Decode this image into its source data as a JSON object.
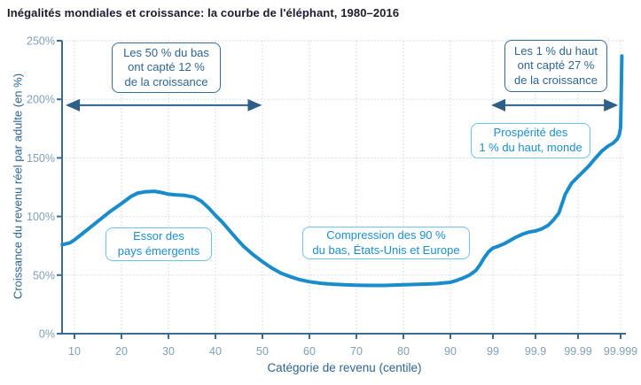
{
  "title": "Inégalités mondiales et croissance: la courbe de l'éléphant, 1980–2016",
  "colors": {
    "curve": "#1a8cca",
    "axis": "#3a6b91",
    "tick_label": "#7f9fb8",
    "axis_title": "#2e6492",
    "grid": "#c5d5e1",
    "arrow": "#2d5f87",
    "dark_annotation_text": "#2e6492",
    "dark_annotation_border": "#3a6b91",
    "light_annotation_text": "#1b8fce",
    "light_annotation_border": "#6cc5ea",
    "title_text": "#1b1b2d",
    "background": "#ffffff"
  },
  "chart_data": {
    "type": "line",
    "title": "Inégalités mondiales et croissance: la courbe de l'éléphant, 1980–2016",
    "xlabel": "Catégorie de revenu (centile)",
    "ylabel": "Croissance du revenu réel par adulte (en %)",
    "x_tick_labels": [
      "10",
      "20",
      "30",
      "40",
      "50",
      "60",
      "70",
      "80",
      "90",
      "99",
      "99.9",
      "99.99",
      "99.999"
    ],
    "x_scale_note": "linéaire de 10 à 90, échelle compressée (log) de 90 à 99.999",
    "y_tick_labels": [
      "0%",
      "50%",
      "100%",
      "150%",
      "200%",
      "250%"
    ],
    "y_tick_values": [
      0,
      50,
      100,
      150,
      200,
      250
    ],
    "ylim": [
      0,
      250
    ],
    "grid": "dotted",
    "legend": "none",
    "values_at_ticks": {
      "10": 80,
      "20": 112,
      "30": 119,
      "40": 101,
      "50": 62,
      "60": 44,
      "70": 41,
      "80": 42,
      "90": 44,
      "99": 73,
      "99.9": 88,
      "99.99": 134,
      "99.999": 237
    },
    "series": [
      {
        "name": "",
        "color": "#1a8cca",
        "points": [
          [
            -0.26,
            76
          ],
          [
            -0.1,
            77.5
          ],
          [
            0,
            80
          ],
          [
            0.25,
            88
          ],
          [
            0.5,
            96
          ],
          [
            0.75,
            104
          ],
          [
            1.0,
            111
          ],
          [
            1.2,
            117
          ],
          [
            1.35,
            120
          ],
          [
            1.5,
            121
          ],
          [
            1.7,
            121.5
          ],
          [
            1.85,
            120.5
          ],
          [
            2.0,
            119
          ],
          [
            2.15,
            118.5
          ],
          [
            2.35,
            118
          ],
          [
            2.55,
            116.5
          ],
          [
            2.7,
            113
          ],
          [
            2.85,
            107.5
          ],
          [
            3.0,
            101
          ],
          [
            3.15,
            95
          ],
          [
            3.3,
            88
          ],
          [
            3.45,
            81
          ],
          [
            3.6,
            74.5
          ],
          [
            3.8,
            67.5
          ],
          [
            4.0,
            61.5
          ],
          [
            4.2,
            56
          ],
          [
            4.4,
            51.5
          ],
          [
            4.6,
            48.5
          ],
          [
            4.8,
            46
          ],
          [
            5.0,
            44.3
          ],
          [
            5.25,
            43
          ],
          [
            5.5,
            42.2
          ],
          [
            5.75,
            41.7
          ],
          [
            6.0,
            41.4
          ],
          [
            6.3,
            41.2
          ],
          [
            6.6,
            41.2
          ],
          [
            7.0,
            41.7
          ],
          [
            7.4,
            42.2
          ],
          [
            7.7,
            42.7
          ],
          [
            8.0,
            43.8
          ],
          [
            8.15,
            45.5
          ],
          [
            8.3,
            47.5
          ],
          [
            8.45,
            50
          ],
          [
            8.6,
            54
          ],
          [
            8.7,
            59
          ],
          [
            8.8,
            65
          ],
          [
            8.9,
            70
          ],
          [
            9.0,
            73
          ],
          [
            9.1,
            74.3
          ],
          [
            9.25,
            76.5
          ],
          [
            9.4,
            79.5
          ],
          [
            9.55,
            82.5
          ],
          [
            9.7,
            85
          ],
          [
            9.85,
            86.8
          ],
          [
            10.0,
            87.6
          ],
          [
            10.15,
            89.5
          ],
          [
            10.3,
            92.5
          ],
          [
            10.42,
            97
          ],
          [
            10.55,
            103
          ],
          [
            10.7,
            119
          ],
          [
            10.85,
            128.5
          ],
          [
            11.0,
            134
          ],
          [
            11.1,
            137.5
          ],
          [
            11.25,
            143
          ],
          [
            11.4,
            149.5
          ],
          [
            11.55,
            155.5
          ],
          [
            11.7,
            160
          ],
          [
            11.82,
            162.5
          ],
          [
            11.92,
            166
          ],
          [
            11.97,
            170
          ],
          [
            12.0,
            176
          ],
          [
            12.01,
            195
          ],
          [
            12.03,
            237
          ]
        ]
      }
    ],
    "annotations": [
      {
        "id": "bottom50",
        "lines": [
          "Les 50 % du bas",
          "ont capté 12 %",
          "de la croissance"
        ],
        "style": "dark",
        "arrow": {
          "from_pos": -0.15,
          "to_pos": 3.95,
          "y_value": 195
        }
      },
      {
        "id": "top1",
        "lines": [
          "Les 1 % du haut",
          "ont capté 27 %",
          "de la croissance"
        ],
        "style": "dark",
        "arrow": {
          "from_pos": 9.0,
          "to_pos": 11.9,
          "y_value": 195
        }
      },
      {
        "id": "prosperite",
        "lines": [
          "Prospérité des",
          "1 % du haut, monde"
        ],
        "style": "light"
      },
      {
        "id": "emergents",
        "lines": [
          "Essor des",
          "pays émergents"
        ],
        "style": "light"
      },
      {
        "id": "compression",
        "lines": [
          "Compression des 90 %",
          "du bas, États-Unis et Europe"
        ],
        "style": "light"
      }
    ]
  }
}
